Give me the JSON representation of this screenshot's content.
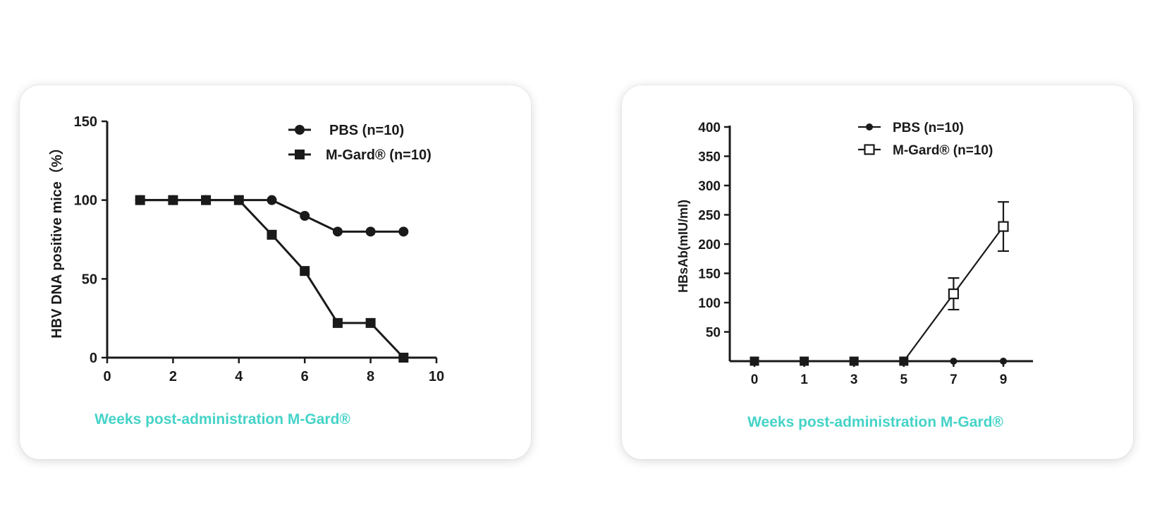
{
  "charts": [
    {
      "type": "line",
      "xlabel": "Weeks post-administration M-Gard®",
      "ylabel": "HBV DNA positive mice（%）",
      "xlim": [
        0,
        10
      ],
      "ylim": [
        0,
        150
      ],
      "xticks": [
        "0",
        "2",
        "4",
        "6",
        "8",
        "10"
      ],
      "yticks": [
        "0",
        "50",
        "100",
        "150"
      ],
      "legend_position": "top-right",
      "series": [
        {
          "name": "PBS (n=10)",
          "marker": "circle",
          "x": [
            1,
            2,
            3,
            4,
            5,
            6,
            7,
            8,
            9
          ],
          "y": [
            100,
            100,
            100,
            100,
            100,
            90,
            80,
            80,
            80
          ]
        },
        {
          "name": "M-Gard® (n=10)",
          "marker": "square",
          "x": [
            1,
            2,
            3,
            4,
            5,
            6,
            7,
            8,
            9
          ],
          "y": [
            100,
            100,
            100,
            100,
            78,
            55,
            22,
            22,
            0
          ]
        }
      ]
    },
    {
      "type": "line",
      "xlabel": "Weeks post-administration M-Gard®",
      "ylabel": "HBsAb(mIU/ml)",
      "categories": [
        "0",
        "1",
        "3",
        "5",
        "7",
        "9"
      ],
      "ylim": [
        0,
        400
      ],
      "yticks": [
        "50",
        "100",
        "150",
        "200",
        "250",
        "300",
        "350",
        "400"
      ],
      "legend_position": "top-right",
      "series": [
        {
          "name": "PBS (n=10)",
          "marker": "circle",
          "values": [
            0,
            0,
            0,
            0,
            0,
            0
          ]
        },
        {
          "name": "M-Gard® (n=10)",
          "marker": "open-square",
          "values": [
            0,
            0,
            0,
            0,
            115,
            230
          ],
          "error": [
            0,
            0,
            0,
            0,
            27,
            42
          ]
        }
      ]
    }
  ],
  "colors": {
    "axis": "#1a1a1a",
    "xlabel": "#45d3c8",
    "card_bg": "#ffffff"
  }
}
